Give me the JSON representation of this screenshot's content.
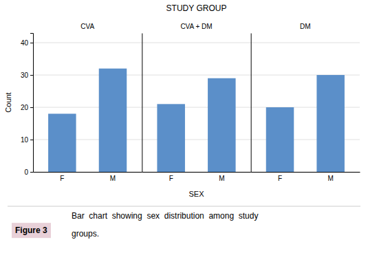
{
  "title": "STUDY GROUP",
  "xlabel": "SEX",
  "annotations": [
    "Figure 3",
    "Bar  chart  showing  sex  distribution  among  study",
    "groups."
  ],
  "chart_data": [
    {
      "type": "bar",
      "title": "CVA",
      "ylabel": "Count",
      "categories": [
        "F",
        "M"
      ],
      "values": [
        18,
        32
      ],
      "color": "#5B8FC9",
      "ylim": [
        0,
        43
      ],
      "yticks": [
        0,
        10,
        20,
        30,
        40
      ],
      "grid": true
    },
    {
      "type": "bar",
      "title": "CVA + DM",
      "categories": [
        "F",
        "M"
      ],
      "values": [
        21,
        29
      ],
      "color": "#5B8FC9",
      "ylim": [
        0,
        43
      ],
      "yticks": [
        0,
        10,
        20,
        30,
        40
      ],
      "grid": true,
      "tick_labels": "x"
    },
    {
      "type": "bar",
      "title": "DM",
      "categories": [
        "F",
        "M"
      ],
      "values": [
        20,
        30
      ],
      "color": "#5B8FC9",
      "ylim": [
        0,
        43
      ],
      "yticks": [
        0,
        10,
        20,
        30,
        40
      ],
      "grid": true,
      "tick_labels": "x"
    }
  ]
}
